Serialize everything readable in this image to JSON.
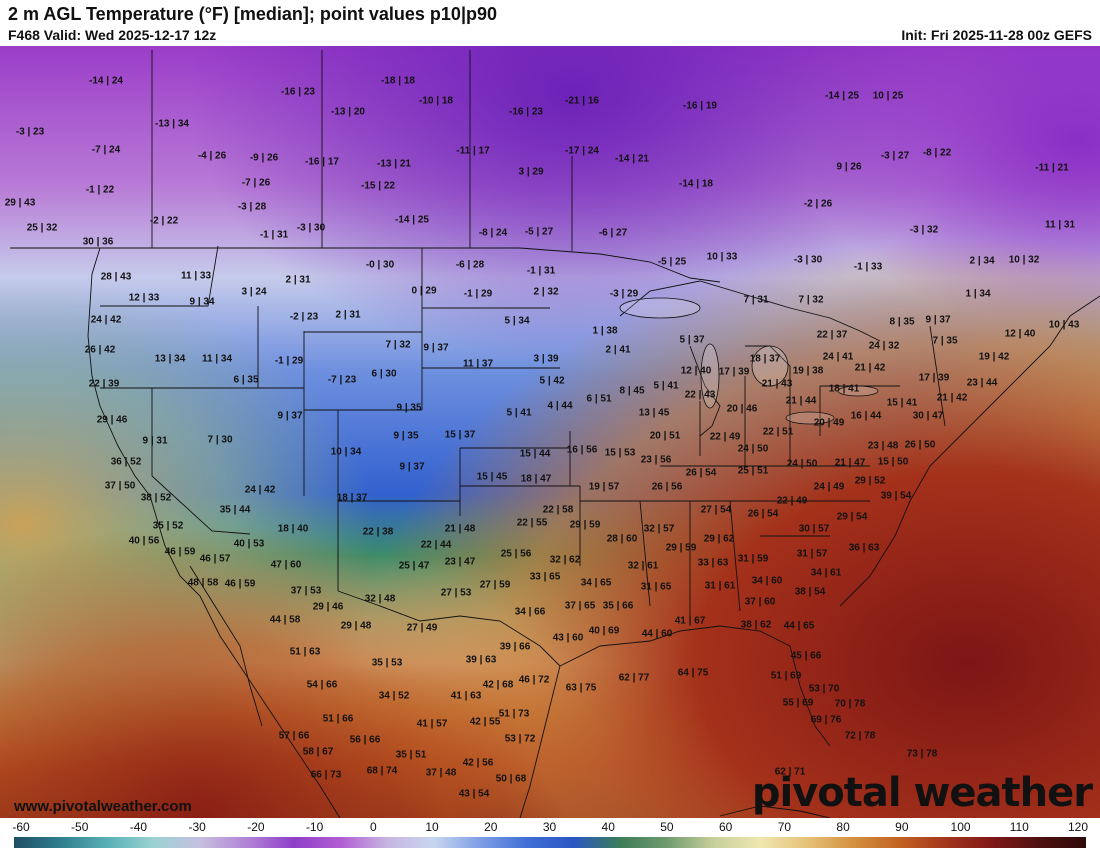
{
  "header": {
    "title": "2 m AGL Temperature (°F) [median]; point values p10|p90",
    "valid": "F468 Valid: Wed 2025-12-17 12z",
    "init": "Init: Fri 2025-11-28 00z GEFS"
  },
  "footer": {
    "website": "www.pivotalweather.com",
    "brand": "pivotal weather"
  },
  "colorbar": {
    "ticks": [
      "-60",
      "-50",
      "-40",
      "-30",
      "-20",
      "-10",
      "0",
      "10",
      "20",
      "30",
      "40",
      "50",
      "60",
      "70",
      "80",
      "90",
      "100",
      "110",
      "120"
    ],
    "colors": [
      "#1e4e66",
      "#2f7f8e",
      "#58b0b6",
      "#9ad2d2",
      "#c7bfe0",
      "#b183d6",
      "#8e3fc9",
      "#b15cd2",
      "#c7b5e0",
      "#c8d6ef",
      "#7e9ee6",
      "#3f6fd6",
      "#2a56c4",
      "#3c7d58",
      "#6f9a6f",
      "#c6cf9a",
      "#efe7b0",
      "#e6c27a",
      "#d4913f",
      "#c26223",
      "#a3351c",
      "#7f1717",
      "#4f1010",
      "#2e0a0a"
    ]
  },
  "points": [
    [
      "-14 | 24",
      106,
      35
    ],
    [
      "-16 | 23",
      298,
      46
    ],
    [
      "-18 | 18",
      398,
      35
    ],
    [
      "-10 | 18",
      436,
      55
    ],
    [
      "-13 | 20",
      348,
      66
    ],
    [
      "-16 | 23",
      526,
      66
    ],
    [
      "-21 | 16",
      582,
      55
    ],
    [
      "-16 | 19",
      700,
      60
    ],
    [
      "-14 | 25",
      842,
      50
    ],
    [
      "10 | 25",
      888,
      50
    ],
    [
      "-13 | 34",
      172,
      78
    ],
    [
      "-3 | 23",
      30,
      86
    ],
    [
      "-7 | 24",
      106,
      104
    ],
    [
      "-4 | 26",
      212,
      110
    ],
    [
      "-9 | 26",
      264,
      112
    ],
    [
      "-16 | 17",
      322,
      116
    ],
    [
      "-13 | 21",
      394,
      118
    ],
    [
      "-11 | 17",
      473,
      105
    ],
    [
      "-17 | 24",
      582,
      105
    ],
    [
      "-14 | 21",
      632,
      113
    ],
    [
      "-3 | 27",
      895,
      110
    ],
    [
      "-8 | 22",
      937,
      107
    ],
    [
      "9 | 26",
      849,
      121
    ],
    [
      "-11 | 21",
      1052,
      122
    ],
    [
      "-1 | 22",
      100,
      144
    ],
    [
      "-7 | 26",
      256,
      137
    ],
    [
      "-15 | 22",
      378,
      140
    ],
    [
      "3 | 29",
      531,
      126
    ],
    [
      "-14 | 18",
      696,
      138
    ],
    [
      "29 | 43",
      20,
      157
    ],
    [
      "-3 | 28",
      252,
      161
    ],
    [
      "-2 | 26",
      818,
      158
    ],
    [
      "-2 | 22",
      164,
      175
    ],
    [
      "-14 | 25",
      412,
      174
    ],
    [
      "25 | 32",
      42,
      182
    ],
    [
      "-1 | 31",
      274,
      189
    ],
    [
      "-3 | 30",
      311,
      182
    ],
    [
      "-8 | 24",
      493,
      187
    ],
    [
      "-5 | 27",
      539,
      186
    ],
    [
      "-6 | 27",
      613,
      187
    ],
    [
      "-3 | 32",
      924,
      184
    ],
    [
      "11 | 31",
      1060,
      179
    ],
    [
      "30 | 36",
      98,
      196
    ],
    [
      "10 | 33",
      722,
      211
    ],
    [
      "-3 | 30",
      808,
      214
    ],
    [
      "-1 | 33",
      868,
      221
    ],
    [
      "2 | 34",
      982,
      215
    ],
    [
      "10 | 32",
      1024,
      214
    ],
    [
      "-0 | 30",
      380,
      219
    ],
    [
      "-6 | 28",
      470,
      219
    ],
    [
      "-1 | 31",
      541,
      225
    ],
    [
      "-5 | 25",
      672,
      216
    ],
    [
      "28 | 43",
      116,
      231
    ],
    [
      "11 | 33",
      196,
      230
    ],
    [
      "2 | 31",
      298,
      234
    ],
    [
      "3 | 24",
      254,
      246
    ],
    [
      "0 | 29",
      424,
      245
    ],
    [
      "-1 | 29",
      478,
      248
    ],
    [
      "2 | 32",
      546,
      246
    ],
    [
      "-3 | 29",
      624,
      248
    ],
    [
      "7 | 31",
      756,
      254
    ],
    [
      "7 | 32",
      811,
      254
    ],
    [
      "1 | 34",
      978,
      248
    ],
    [
      "12 | 33",
      144,
      252
    ],
    [
      "9 | 34",
      202,
      256
    ],
    [
      "-2 | 23",
      304,
      271
    ],
    [
      "2 | 31",
      348,
      269
    ],
    [
      "5 | 34",
      517,
      275
    ],
    [
      "1 | 38",
      605,
      285
    ],
    [
      "8 | 35",
      902,
      276
    ],
    [
      "9 | 37",
      938,
      274
    ],
    [
      "12 | 40",
      1020,
      288
    ],
    [
      "10 | 43",
      1064,
      279
    ],
    [
      "24 | 42",
      106,
      274
    ],
    [
      "5 | 37",
      692,
      294
    ],
    [
      "22 | 37",
      832,
      289
    ],
    [
      "7 | 35",
      945,
      295
    ],
    [
      "24 | 32",
      884,
      300
    ],
    [
      "7 | 32",
      398,
      299
    ],
    [
      "9 | 37",
      436,
      302
    ],
    [
      "26 | 42",
      100,
      304
    ],
    [
      "2 | 41",
      618,
      304
    ],
    [
      "24 | 41",
      838,
      311
    ],
    [
      "21 | 42",
      870,
      322
    ],
    [
      "19 | 42",
      994,
      311
    ],
    [
      "13 | 34",
      170,
      313
    ],
    [
      "11 | 34",
      217,
      313
    ],
    [
      "-1 | 29",
      289,
      315
    ],
    [
      "11 | 37",
      478,
      318
    ],
    [
      "3 | 39",
      546,
      313
    ],
    [
      "18 | 37",
      765,
      313
    ],
    [
      "17 | 39",
      734,
      326
    ],
    [
      "12 | 40",
      696,
      325
    ],
    [
      "19 | 38",
      808,
      325
    ],
    [
      "6 | 30",
      384,
      328
    ],
    [
      "-7 | 23",
      342,
      334
    ],
    [
      "6 | 35",
      246,
      334
    ],
    [
      "5 | 42",
      552,
      335
    ],
    [
      "17 | 39",
      934,
      332
    ],
    [
      "23 | 44",
      982,
      337
    ],
    [
      "22 | 39",
      104,
      338
    ],
    [
      "21 | 43",
      777,
      338
    ],
    [
      "18 | 41",
      844,
      343
    ],
    [
      "8 | 45",
      632,
      345
    ],
    [
      "5 | 41",
      666,
      340
    ],
    [
      "22 | 43",
      700,
      349
    ],
    [
      "6 | 51",
      599,
      353
    ],
    [
      "4 | 44",
      560,
      360
    ],
    [
      "21 | 44",
      801,
      355
    ],
    [
      "16 | 44",
      866,
      370
    ],
    [
      "21 | 42",
      952,
      352
    ],
    [
      "15 | 41",
      902,
      357
    ],
    [
      "30 | 47",
      928,
      370
    ],
    [
      "9 | 35",
      409,
      362
    ],
    [
      "9 | 37",
      290,
      370
    ],
    [
      "5 | 41",
      519,
      367
    ],
    [
      "13 | 45",
      654,
      367
    ],
    [
      "20 | 46",
      742,
      363
    ],
    [
      "20 | 49",
      829,
      377
    ],
    [
      "29 | 46",
      112,
      374
    ],
    [
      "9 | 31",
      155,
      395
    ],
    [
      "7 | 30",
      220,
      394
    ],
    [
      "9 | 35",
      406,
      390
    ],
    [
      "15 | 37",
      460,
      389
    ],
    [
      "20 | 51",
      665,
      390
    ],
    [
      "22 | 49",
      725,
      391
    ],
    [
      "22 | 51",
      778,
      386
    ],
    [
      "23 | 48",
      883,
      400
    ],
    [
      "26 | 50",
      920,
      399
    ],
    [
      "10 | 34",
      346,
      406
    ],
    [
      "15 | 44",
      535,
      408
    ],
    [
      "16 | 56",
      582,
      404
    ],
    [
      "15 | 53",
      620,
      407
    ],
    [
      "23 | 56",
      656,
      414
    ],
    [
      "24 | 50",
      753,
      403
    ],
    [
      "21 | 47",
      850,
      417
    ],
    [
      "15 | 50",
      893,
      416
    ],
    [
      "36 | 52",
      126,
      416
    ],
    [
      "9 | 37",
      412,
      421
    ],
    [
      "26 | 54",
      701,
      427
    ],
    [
      "25 | 51",
      753,
      425
    ],
    [
      "24 | 50",
      802,
      418
    ],
    [
      "15 | 45",
      492,
      431
    ],
    [
      "18 | 47",
      536,
      433
    ],
    [
      "29 | 52",
      870,
      435
    ],
    [
      "37 | 50",
      120,
      440
    ],
    [
      "24 | 42",
      260,
      444
    ],
    [
      "19 | 57",
      604,
      441
    ],
    [
      "26 | 56",
      667,
      441
    ],
    [
      "24 | 49",
      829,
      441
    ],
    [
      "39 | 54",
      896,
      450
    ],
    [
      "38 | 52",
      156,
      452
    ],
    [
      "18 | 37",
      352,
      452
    ],
    [
      "27 | 54",
      716,
      464
    ],
    [
      "22 | 49",
      792,
      455
    ],
    [
      "35 | 44",
      235,
      464
    ],
    [
      "22 | 58",
      558,
      464
    ],
    [
      "26 | 54",
      763,
      468
    ],
    [
      "29 | 54",
      852,
      471
    ],
    [
      "35 | 52",
      168,
      480
    ],
    [
      "22 | 55",
      532,
      477
    ],
    [
      "29 | 59",
      585,
      479
    ],
    [
      "32 | 57",
      659,
      483
    ],
    [
      "30 | 57",
      814,
      483
    ],
    [
      "18 | 40",
      293,
      483
    ],
    [
      "22 | 38",
      378,
      486
    ],
    [
      "21 | 48",
      460,
      483
    ],
    [
      "40 | 56",
      144,
      495
    ],
    [
      "28 | 60",
      622,
      493
    ],
    [
      "29 | 62",
      719,
      493
    ],
    [
      "40 | 53",
      249,
      498
    ],
    [
      "22 | 44",
      436,
      499
    ],
    [
      "36 | 63",
      864,
      502
    ],
    [
      "29 | 59",
      681,
      502
    ],
    [
      "46 | 59",
      180,
      506
    ],
    [
      "46 | 57",
      215,
      513
    ],
    [
      "25 | 56",
      516,
      508
    ],
    [
      "32 | 62",
      565,
      514
    ],
    [
      "31 | 59",
      753,
      513
    ],
    [
      "31 | 57",
      812,
      508
    ],
    [
      "47 | 60",
      286,
      519
    ],
    [
      "25 | 47",
      414,
      520
    ],
    [
      "23 | 47",
      460,
      516
    ],
    [
      "32 | 61",
      643,
      520
    ],
    [
      "33 | 63",
      713,
      517
    ],
    [
      "34 | 61",
      826,
      527
    ],
    [
      "33 | 65",
      545,
      531
    ],
    [
      "48 | 58",
      203,
      537
    ],
    [
      "46 | 59",
      240,
      538
    ],
    [
      "37 | 53",
      306,
      545
    ],
    [
      "27 | 59",
      495,
      539
    ],
    [
      "34 | 65",
      596,
      537
    ],
    [
      "31 | 65",
      656,
      541
    ],
    [
      "31 | 61",
      720,
      540
    ],
    [
      "34 | 60",
      767,
      535
    ],
    [
      "38 | 54",
      810,
      546
    ],
    [
      "27 | 53",
      456,
      547
    ],
    [
      "32 | 48",
      380,
      553
    ],
    [
      "29 | 46",
      328,
      561
    ],
    [
      "37 | 65",
      580,
      560
    ],
    [
      "35 | 66",
      618,
      560
    ],
    [
      "37 | 60",
      760,
      556
    ],
    [
      "34 | 66",
      530,
      566
    ],
    [
      "44 | 58",
      285,
      574
    ],
    [
      "27 | 49",
      422,
      582
    ],
    [
      "29 | 48",
      356,
      580
    ],
    [
      "41 | 67",
      690,
      575
    ],
    [
      "38 | 62",
      756,
      579
    ],
    [
      "44 | 65",
      799,
      580
    ],
    [
      "40 | 69",
      604,
      585
    ],
    [
      "44 | 60",
      657,
      588
    ],
    [
      "43 | 60",
      568,
      592
    ],
    [
      "39 | 66",
      515,
      601
    ],
    [
      "51 | 63",
      305,
      606
    ],
    [
      "45 | 66",
      806,
      610
    ],
    [
      "35 | 53",
      387,
      617
    ],
    [
      "39 | 63",
      481,
      614
    ],
    [
      "62 | 77",
      634,
      632
    ],
    [
      "64 | 75",
      693,
      627
    ],
    [
      "51 | 69",
      786,
      630
    ],
    [
      "46 | 72",
      534,
      634
    ],
    [
      "63 | 75",
      581,
      642
    ],
    [
      "54 | 66",
      322,
      639
    ],
    [
      "42 | 68",
      498,
      639
    ],
    [
      "53 | 70",
      824,
      643
    ],
    [
      "34 | 52",
      394,
      650
    ],
    [
      "41 | 63",
      466,
      650
    ],
    [
      "55 | 69",
      798,
      657
    ],
    [
      "70 | 78",
      850,
      658
    ],
    [
      "51 | 73",
      514,
      668
    ],
    [
      "51 | 66",
      338,
      673
    ],
    [
      "69 | 76",
      826,
      674
    ],
    [
      "41 | 57",
      432,
      678
    ],
    [
      "42 | 55",
      485,
      676
    ],
    [
      "57 | 66",
      294,
      690
    ],
    [
      "56 | 66",
      365,
      694
    ],
    [
      "53 | 72",
      520,
      693
    ],
    [
      "72 | 78",
      860,
      690
    ],
    [
      "58 | 67",
      318,
      706
    ],
    [
      "35 | 51",
      411,
      709
    ],
    [
      "73 | 78",
      922,
      708
    ],
    [
      "42 | 56",
      478,
      717
    ],
    [
      "37 | 48",
      441,
      727
    ],
    [
      "68 | 74",
      382,
      725
    ],
    [
      "66 | 73",
      326,
      729
    ],
    [
      "50 | 68",
      511,
      733
    ],
    [
      "62 | 71",
      790,
      726
    ],
    [
      "43 | 54",
      474,
      748
    ]
  ]
}
